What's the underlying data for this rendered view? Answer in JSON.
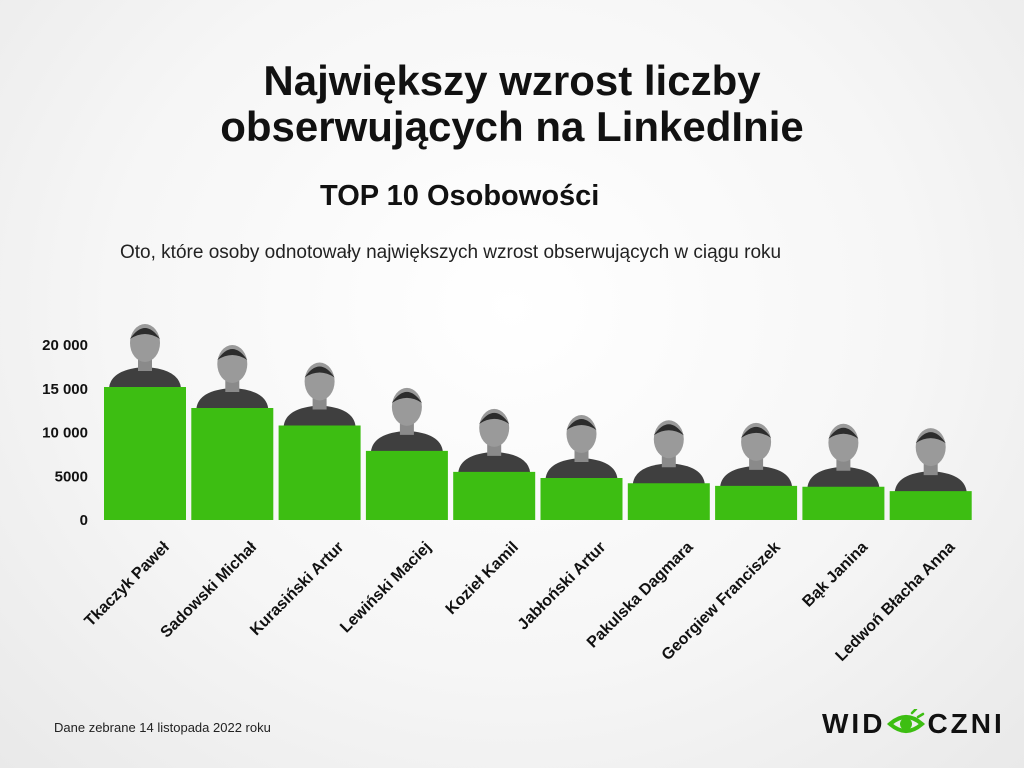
{
  "title_line1": "Największy wzrost liczby",
  "title_line2": "obserwujących na LinkedInie",
  "subtitle": "TOP 10 Osobowości",
  "description": "Oto, które osoby odnotowały największych wzrost obserwujących w ciągu roku",
  "footnote": "Dane zebrane 14 listopada 2022 roku",
  "logo": {
    "left": "WID",
    "right": "CZNI",
    "icon": "eye-logo-icon"
  },
  "colors": {
    "bar": "#3dbe12",
    "photo_placeholder": "#5a5a5a",
    "logo_accent": "#3dbe12"
  },
  "chart_data": {
    "type": "bar",
    "categories": [
      "Tkaczyk Paweł",
      "Sadowski Michał",
      "Kurasiński Artur",
      "Lewiński Maciej",
      "Kozieł Kamil",
      "Jabłoński Artur",
      "Pakulska Dagmara",
      "Georgiew Franciszek",
      "Bąk Janina",
      "Ledwoń Błacha Anna"
    ],
    "values": [
      15200,
      12800,
      10800,
      7900,
      5500,
      4800,
      4200,
      3900,
      3800,
      3300
    ],
    "yticks": [
      0,
      5000,
      10000,
      15000,
      20000
    ],
    "ytick_labels": [
      "0",
      "5000",
      "10 000",
      "15 000",
      "20 000"
    ],
    "ylim": [
      0,
      20000
    ],
    "grid": false,
    "legend": "none",
    "bar_decoration": "portrait-photo-on-top",
    "title": "",
    "xlabel": "",
    "ylabel": ""
  }
}
